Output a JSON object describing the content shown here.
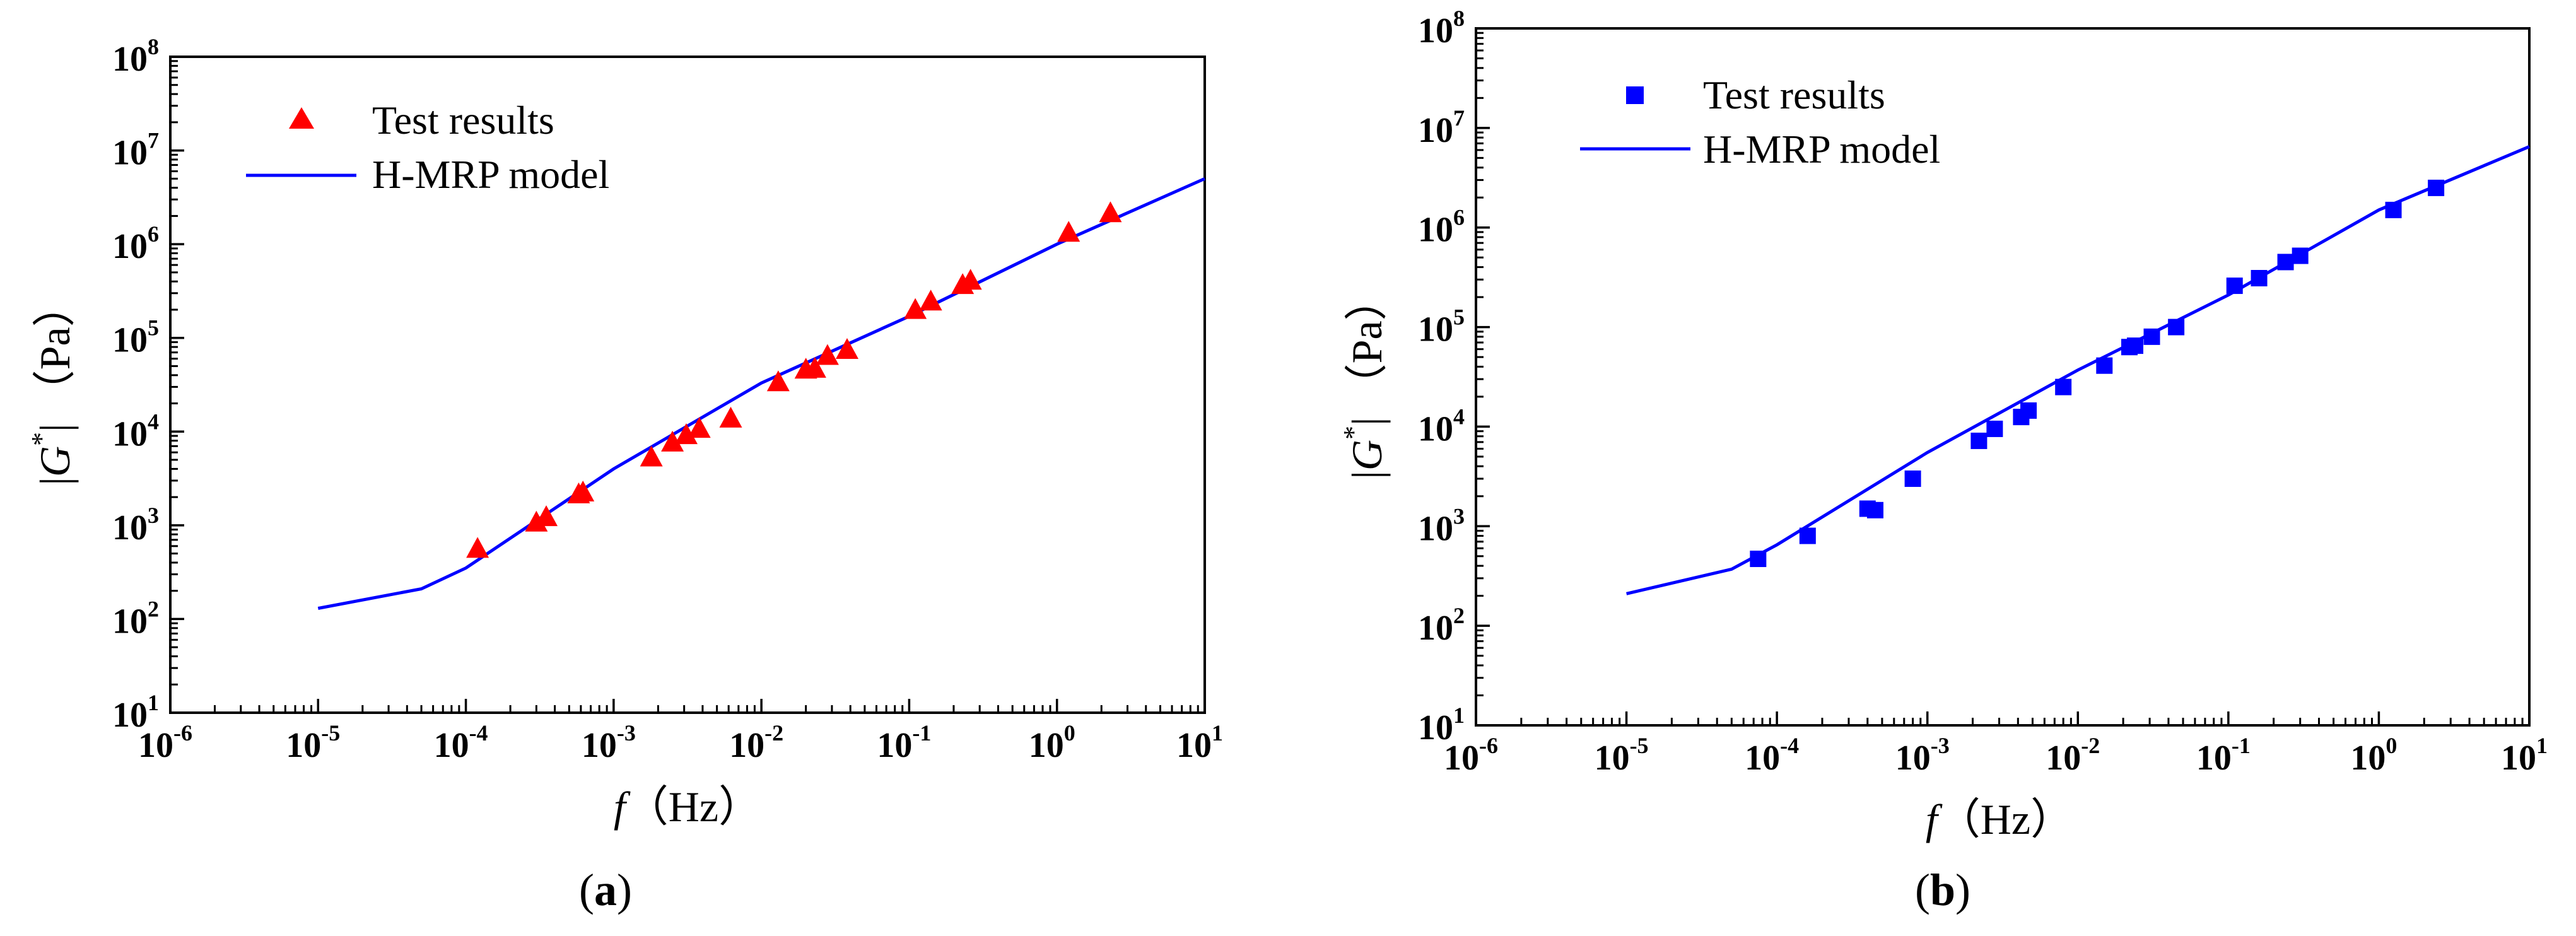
{
  "chart_data": [
    {
      "type": "scatter+line",
      "panel_label": "a",
      "xlabel_var": "f",
      "xlabel_unit": "（Hz）",
      "ylabel_var": "G",
      "ylabel_sup": "*",
      "ylabel_unit": "（Pa）",
      "xscale": "log",
      "yscale": "log",
      "xlim": [
        1e-06,
        10
      ],
      "ylim": [
        10,
        100000000.0
      ],
      "x_ticks": [
        {
          "base": "10",
          "exp": "-6"
        },
        {
          "base": "10",
          "exp": "-5"
        },
        {
          "base": "10",
          "exp": "-4"
        },
        {
          "base": "10",
          "exp": "-3"
        },
        {
          "base": "10",
          "exp": "-2"
        },
        {
          "base": "10",
          "exp": "-1"
        },
        {
          "base": "10",
          "exp": "0"
        },
        {
          "base": "10",
          "exp": "1"
        }
      ],
      "y_ticks": [
        {
          "base": "10",
          "exp": "1"
        },
        {
          "base": "10",
          "exp": "2"
        },
        {
          "base": "10",
          "exp": "3"
        },
        {
          "base": "10",
          "exp": "4"
        },
        {
          "base": "10",
          "exp": "5"
        },
        {
          "base": "10",
          "exp": "6"
        },
        {
          "base": "10",
          "exp": "7"
        },
        {
          "base": "10",
          "exp": "8"
        }
      ],
      "legend_position": "top-left",
      "series": [
        {
          "name": "Test results",
          "kind": "scatter",
          "marker": "triangle",
          "color": "#ff0000",
          "x": [
            0.00012,
            0.0003,
            0.00035,
            0.00058,
            0.00062,
            0.0018,
            0.0025,
            0.0031,
            0.0038,
            0.0062,
            0.013,
            0.02,
            0.023,
            0.028,
            0.038,
            0.11,
            0.14,
            0.23,
            0.26,
            1.2,
            2.3
          ],
          "y": [
            550,
            1050,
            1200,
            2100,
            2200,
            5200,
            7500,
            9000,
            10500,
            13500,
            33000,
            45000,
            46000,
            63000,
            73000,
            195000,
            240000,
            360000,
            400000,
            1300000,
            2100000
          ]
        },
        {
          "name": "H-MRP model",
          "kind": "line",
          "color": "#0000ff",
          "x": [
            1e-05,
            5e-05,
            0.0001,
            0.001,
            0.01,
            0.1,
            1,
            10
          ],
          "y": [
            130,
            210,
            350,
            4000,
            33000,
            170000,
            1000000,
            5000000
          ]
        }
      ]
    },
    {
      "type": "scatter+line",
      "panel_label": "b",
      "xlabel_var": "f",
      "xlabel_unit": "（Hz）",
      "ylabel_var": "G",
      "ylabel_sup": "*",
      "ylabel_unit": "（Pa）",
      "xscale": "log",
      "yscale": "log",
      "xlim": [
        1e-06,
        10
      ],
      "ylim": [
        10,
        100000000.0
      ],
      "x_ticks": [
        {
          "base": "10",
          "exp": "-6"
        },
        {
          "base": "10",
          "exp": "-5"
        },
        {
          "base": "10",
          "exp": "-4"
        },
        {
          "base": "10",
          "exp": "-3"
        },
        {
          "base": "10",
          "exp": "-2"
        },
        {
          "base": "10",
          "exp": "-1"
        },
        {
          "base": "10",
          "exp": "0"
        },
        {
          "base": "10",
          "exp": "1"
        }
      ],
      "y_ticks": [
        {
          "base": "10",
          "exp": "1"
        },
        {
          "base": "10",
          "exp": "2"
        },
        {
          "base": "10",
          "exp": "3"
        },
        {
          "base": "10",
          "exp": "4"
        },
        {
          "base": "10",
          "exp": "5"
        },
        {
          "base": "10",
          "exp": "6"
        },
        {
          "base": "10",
          "exp": "7"
        },
        {
          "base": "10",
          "exp": "8"
        }
      ],
      "legend_position": "top-left",
      "series": [
        {
          "name": "Test results",
          "kind": "scatter",
          "marker": "square",
          "color": "#0000ff",
          "x": [
            7.5e-05,
            0.00016,
            0.0004,
            0.00045,
            0.0008,
            0.0022,
            0.0028,
            0.0042,
            0.0047,
            0.008,
            0.015,
            0.022,
            0.024,
            0.031,
            0.045,
            0.11,
            0.16,
            0.24,
            0.3,
            1.25,
            2.4
          ],
          "y": [
            470,
            800,
            1500,
            1450,
            3000,
            7200,
            9500,
            12500,
            14500,
            25000,
            41000,
            63000,
            65000,
            80000,
            100000,
            260000,
            310000,
            450000,
            520000,
            1500000,
            2500000
          ]
        },
        {
          "name": "H-MRP model",
          "kind": "line",
          "color": "#0000ff",
          "x": [
            1e-05,
            5e-05,
            0.0001,
            0.001,
            0.01,
            0.1,
            1,
            10
          ],
          "y": [
            210,
            370,
            650,
            5500,
            37000,
            210000,
            1500000,
            6500000
          ]
        }
      ]
    }
  ]
}
